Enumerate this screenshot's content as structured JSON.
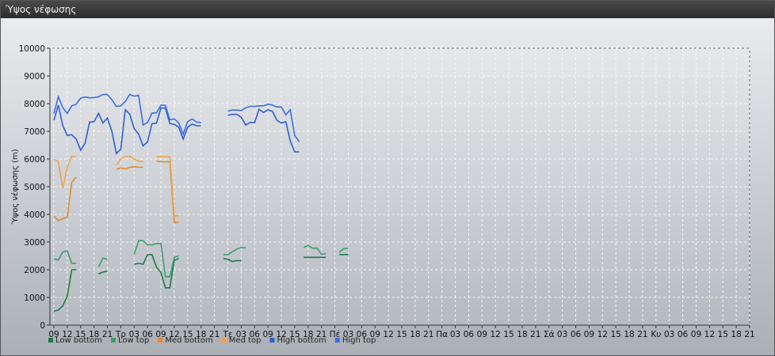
{
  "window": {
    "title": "Ύψος νέφωσης"
  },
  "chart_data": {
    "type": "line",
    "title": "",
    "xlabel": "",
    "ylabel": "Ύψος νέφωσης (m)",
    "ylim": [
      0,
      10000
    ],
    "yticks": [
      0,
      1000,
      2000,
      3000,
      4000,
      5000,
      6000,
      7000,
      8000,
      9000,
      10000
    ],
    "grid": true,
    "legend_position": "bottom-left",
    "x_tick_labels": [
      "09",
      "12",
      "15",
      "18",
      "21",
      "Τρ",
      "03",
      "06",
      "09",
      "12",
      "15",
      "18",
      "21",
      "Τε",
      "03",
      "06",
      "09",
      "12",
      "15",
      "18",
      "21",
      "Πέ",
      "03",
      "06",
      "09",
      "12",
      "15",
      "18",
      "21",
      "Πα",
      "03",
      "06",
      "09",
      "12",
      "15",
      "18",
      "21",
      "Σά",
      "03",
      "06",
      "09",
      "12",
      "15",
      "18",
      "21",
      "Κυ",
      "03",
      "06",
      "09",
      "12",
      "15",
      "18",
      "21"
    ],
    "series": [
      {
        "name": "Low bottom",
        "color": "#1f7a4c",
        "y": [
          500,
          550,
          700,
          1050,
          2000,
          2000,
          null,
          null,
          null,
          null,
          null,
          null,
          null,
          null,
          null,
          null,
          null,
          null,
          2200,
          2230,
          2200,
          2550,
          2550,
          2100,
          1900,
          1350,
          1350,
          2350,
          2400,
          null,
          null,
          null,
          null,
          null,
          null,
          null,
          null,
          null,
          2400,
          2380,
          2300,
          2330,
          2330,
          null,
          null,
          null,
          null,
          null,
          null,
          null,
          null,
          null,
          null,
          null,
          null,
          null,
          2450,
          2450,
          2450,
          2450,
          2450,
          2450,
          null,
          null,
          2550,
          2550,
          2550
        ]
      },
      {
        "name": "Low top",
        "color": "#3b9e6e",
        "y": [
          2400,
          2350,
          2650,
          2680,
          2230,
          2230,
          null,
          null,
          null,
          null,
          null,
          null,
          null,
          null,
          null,
          null,
          null,
          null,
          2550,
          3050,
          3050,
          2900,
          2900,
          2950,
          2950,
          1750,
          1750,
          2450,
          2500,
          null,
          null,
          null,
          null,
          null,
          null,
          null,
          null,
          null,
          2550,
          2550,
          2650,
          2750,
          2800,
          2800,
          null,
          null,
          null,
          null,
          null,
          null,
          null,
          null,
          null,
          null,
          null,
          null,
          2800,
          2880,
          2780,
          2780,
          2560,
          2580,
          null,
          null,
          2630,
          2770,
          2770
        ]
      },
      {
        "name": "Med bottom",
        "color": "#e48a2c",
        "y": [
          3950,
          3780,
          3850,
          3900,
          5150,
          5350,
          null,
          null,
          null,
          null,
          null,
          null,
          null,
          null,
          null,
          null,
          null,
          null,
          null,
          null,
          null,
          null,
          null,
          null,
          null,
          null,
          null,
          null,
          null,
          null,
          null,
          null,
          null,
          null,
          null,
          null,
          null,
          null,
          null,
          null,
          null,
          null,
          null,
          null,
          null,
          null,
          null,
          null,
          null,
          null,
          null,
          null,
          null,
          null,
          null,
          null,
          null,
          null,
          null,
          null,
          null,
          null,
          null,
          null,
          null,
          null,
          null
        ]
      },
      {
        "name": "Med top",
        "color": "#f0a24a",
        "y": [
          6000,
          5900,
          4950,
          5700,
          6100,
          6100,
          null,
          null,
          null,
          null,
          null,
          null,
          null,
          null,
          null,
          null,
          null,
          null,
          null,
          null,
          null,
          null,
          null,
          null,
          null,
          null,
          null,
          null,
          null,
          null,
          null,
          null,
          null,
          null,
          null,
          null,
          null,
          null,
          null,
          null,
          null,
          null,
          null,
          null,
          null,
          null,
          null,
          null,
          null,
          null,
          null,
          null,
          null,
          null,
          null,
          null,
          null,
          null,
          null,
          null,
          null,
          null,
          null,
          null,
          null,
          null,
          null
        ]
      },
      {
        "name": "High bottom",
        "color": "#2f5fcf",
        "y": [
          7400,
          7950,
          7200,
          6850,
          6880,
          6720,
          6320,
          6570,
          7330,
          7350,
          7650,
          7300,
          7480,
          7000,
          6200,
          6350,
          7780,
          7620,
          7100,
          6900,
          6470,
          6620,
          7280,
          7290,
          7840,
          7840,
          7280,
          7250,
          7150,
          6720,
          7150,
          7260,
          7200,
          7200,
          null,
          null,
          null,
          null,
          null,
          7580,
          7610,
          7610,
          7510,
          7230,
          7320,
          7320,
          7800,
          7680,
          7780,
          7720,
          7400,
          7300,
          7350,
          6650,
          6260,
          6260
        ]
      },
      {
        "name": "High top",
        "color": "#3b6fe0",
        "y": [
          7650,
          8250,
          7850,
          7650,
          7920,
          7980,
          8200,
          8240,
          8210,
          8220,
          8250,
          8330,
          8330,
          8140,
          7900,
          7920,
          8080,
          8330,
          8270,
          8300,
          7230,
          7320,
          7660,
          7670,
          7940,
          7940,
          7420,
          7450,
          7300,
          6900,
          7350,
          7450,
          7330,
          7320,
          null,
          null,
          null,
          null,
          null,
          7730,
          7770,
          7770,
          7750,
          7850,
          7900,
          7900,
          7920,
          7920,
          7980,
          7950,
          7880,
          7880,
          7600,
          7780,
          6850,
          6620
        ]
      }
    ],
    "extra_segments": [
      {
        "series": "Low bottom",
        "x": [
          10,
          11,
          12
        ],
        "y": [
          1850,
          1920,
          1950
        ]
      },
      {
        "series": "Low top",
        "x": [
          10,
          11,
          12
        ],
        "y": [
          2100,
          2420,
          2380
        ]
      },
      {
        "series": "Med bottom",
        "x": [
          14,
          15,
          16,
          17,
          18,
          19,
          20
        ],
        "y": [
          5620,
          5680,
          5640,
          5700,
          5720,
          5700,
          5700
        ]
      },
      {
        "series": "Med top",
        "x": [
          14,
          15,
          16,
          17,
          18,
          19,
          20
        ],
        "y": [
          5780,
          6000,
          6100,
          6100,
          6000,
          5920,
          5920
        ]
      },
      {
        "series": "Med bottom",
        "x": [
          23,
          24,
          25,
          26,
          27,
          28
        ],
        "y": [
          5930,
          5900,
          5900,
          5900,
          3700,
          3700
        ]
      },
      {
        "series": "Med top",
        "x": [
          23,
          24,
          25,
          26,
          27,
          28
        ],
        "y": [
          6080,
          6080,
          6080,
          6080,
          3950,
          3950
        ]
      }
    ]
  }
}
